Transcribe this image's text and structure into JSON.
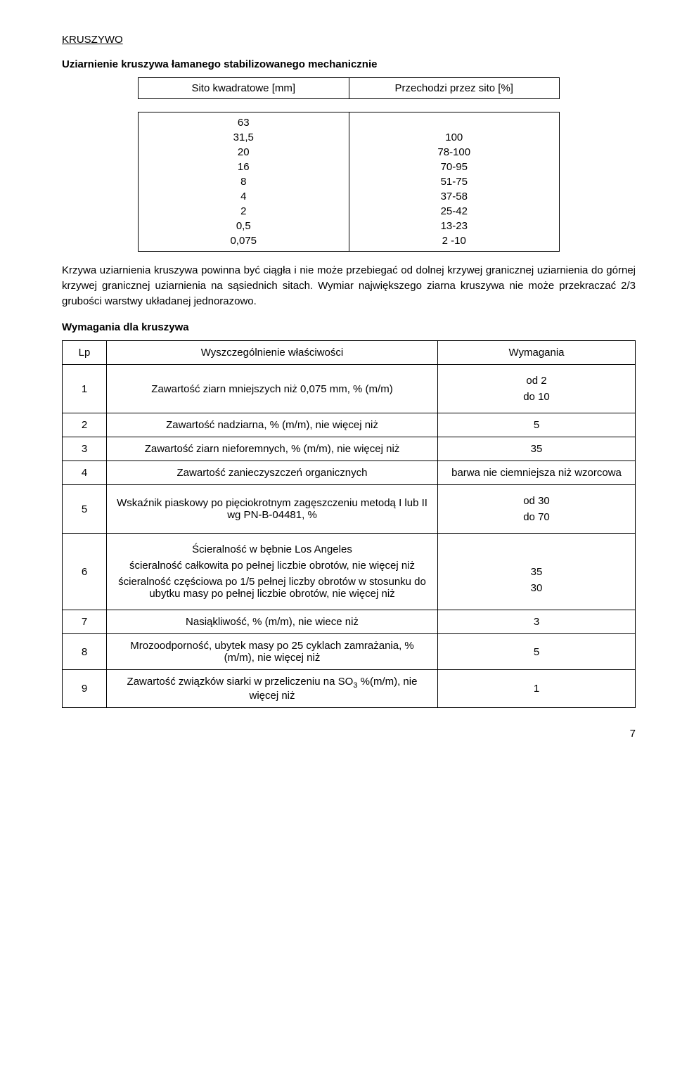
{
  "heading": "KRUSZYWO",
  "subtitle1": "Uziarnienie kruszywa łamanego stabilizowanego mechanicznie",
  "sieve_table": {
    "header_left": "Sito kwadratowe [mm]",
    "header_right": "Przechodzi przez sito [%]",
    "left_rows": [
      "63",
      "31,5",
      "20",
      "16",
      "8",
      "4",
      "2",
      "0,5",
      "0,075"
    ],
    "right_rows": [
      "",
      "100",
      "78-100",
      "70-95",
      "51-75",
      "37-58",
      "25-42",
      "13-23",
      "2 -10"
    ]
  },
  "paragraph": "Krzywa uziarnienia kruszywa powinna być ciągła i nie może przebiegać od dolnej krzywej granicznej uziarnienia do górnej krzywej granicznej uziarnienia na sąsiednich sitach. Wymiar największego ziarna kruszywa nie może przekraczać 2/3 grubości warstwy układanej jednorazowo.",
  "subtitle2": "Wymagania dla kruszywa",
  "req_table": {
    "head_lp": "Lp",
    "head_desc": "Wyszczególnienie właściwości",
    "head_req": "Wymagania",
    "rows": [
      {
        "lp": "1",
        "desc": "Zawartość ziarn mniejszych niż 0,075 mm, % (m/m)",
        "req_lines": [
          "od 2",
          "do 10"
        ]
      },
      {
        "lp": "2",
        "desc": "Zawartość nadziarna, % (m/m), nie więcej niż",
        "req_lines": [
          "5"
        ]
      },
      {
        "lp": "3",
        "desc": "Zawartość ziarn nieforemnych, % (m/m), nie więcej niż",
        "req_lines": [
          "35"
        ]
      },
      {
        "lp": "4",
        "desc": "Zawartość zanieczyszczeń organicznych",
        "req_lines": [
          "barwa nie ciemniejsza niż wzorcowa"
        ]
      },
      {
        "lp": "5",
        "desc": "Wskaźnik piaskowy po pięciokrotnym zagęszczeniu metodą I lub II wg PN-B-04481, %",
        "req_lines": [
          "od 30",
          "do 70"
        ]
      },
      {
        "lp": "6",
        "desc_lines": [
          "Ścieralność w bębnie Los Angeles",
          "ścieralność całkowita po pełnej liczbie obrotów, nie więcej niż",
          "ścieralność częściowa po 1/5 pełnej liczby obrotów w stosunku do ubytku masy po pełnej liczbie obrotów, nie więcej niż"
        ],
        "req_lines": [
          "",
          "35",
          "30"
        ]
      },
      {
        "lp": "7",
        "desc": "Nasiąkliwość, % (m/m), nie wiece niż",
        "req_lines": [
          "3"
        ]
      },
      {
        "lp": "8",
        "desc": "Mrozoodporność, ubytek masy po 25 cyklach zamrażania, % (m/m), nie więcej niż",
        "req_lines": [
          "5"
        ]
      },
      {
        "lp": "9",
        "desc_html": "Zawartość związków siarki w przeliczeniu na SO<sub>3</sub> %(m/m), nie więcej niż",
        "req_lines": [
          "1"
        ]
      }
    ]
  },
  "page_number": "7"
}
